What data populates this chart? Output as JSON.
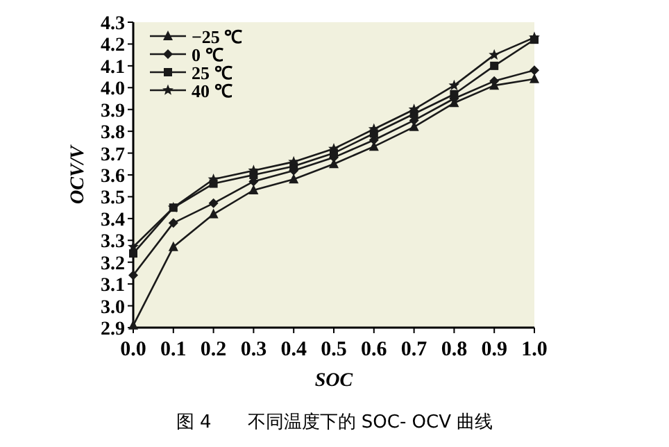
{
  "chart_data": {
    "type": "line",
    "xlabel": "SOC",
    "ylabel": "OCV/V",
    "x": [
      0.0,
      0.1,
      0.2,
      0.3,
      0.4,
      0.5,
      0.6,
      0.7,
      0.8,
      0.9,
      1.0
    ],
    "series": [
      {
        "name": "−25 ℃",
        "color": "#1a1a1a",
        "marker": "triangle",
        "values": [
          2.91,
          3.27,
          3.42,
          3.53,
          3.58,
          3.65,
          3.73,
          3.82,
          3.93,
          4.01,
          4.04
        ]
      },
      {
        "name": "0 ℃",
        "color": "#1a1a1a",
        "marker": "diamond",
        "values": [
          3.14,
          3.38,
          3.47,
          3.57,
          3.62,
          3.68,
          3.76,
          3.85,
          3.95,
          4.03,
          4.08
        ]
      },
      {
        "name": "25 ℃",
        "color": "#1a1a1a",
        "marker": "square",
        "values": [
          3.24,
          3.45,
          3.56,
          3.6,
          3.64,
          3.7,
          3.79,
          3.88,
          3.97,
          4.1,
          4.22
        ]
      },
      {
        "name": "40 ℃",
        "color": "#1a1a1a",
        "marker": "star",
        "values": [
          3.27,
          3.45,
          3.58,
          3.62,
          3.66,
          3.72,
          3.81,
          3.9,
          4.01,
          4.15,
          4.23
        ]
      }
    ],
    "xlim": [
      0,
      1
    ],
    "ylim": [
      2.9,
      4.3
    ],
    "xticks": [
      {
        "value": 0,
        "label": "0.0"
      },
      0.1,
      0.2,
      0.3,
      0.4,
      0.5,
      0.6,
      0.7,
      0.8,
      0.9,
      {
        "value": 1,
        "label": "1.0"
      }
    ],
    "yticks": [
      2.9,
      {
        "value": 3,
        "label": "3.0"
      },
      3.1,
      3.2,
      3.3,
      3.4,
      3.5,
      3.6,
      3.7,
      3.8,
      3.9,
      {
        "value": 4,
        "label": "4.0"
      },
      4.1,
      4.2,
      4.3
    ],
    "grid": false,
    "legend": "top left",
    "line_style": "solid",
    "annotations": [
      "图 4　　不同温度下的 SOC- OCV 曲线"
    ]
  }
}
